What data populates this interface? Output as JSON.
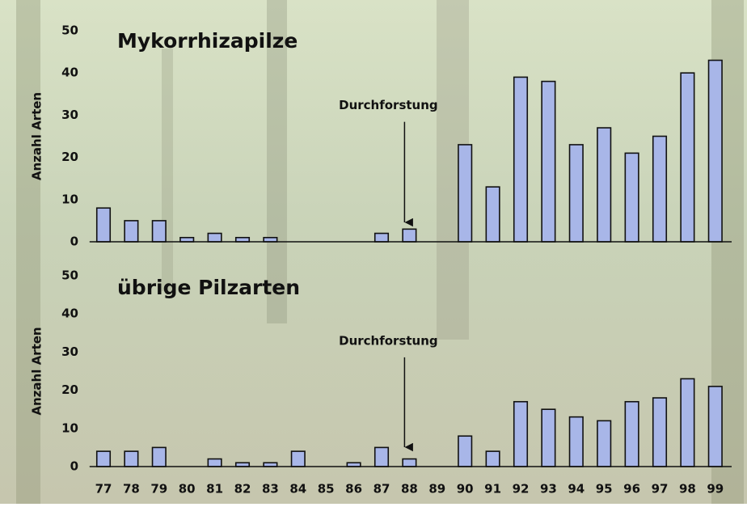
{
  "chart_data": [
    {
      "type": "bar",
      "title": "Mykorrhizapilze",
      "y_label": "Anzahl Arten",
      "annotation": "Durchforstung",
      "annotation_at": 11,
      "values": [
        8,
        5,
        5,
        1,
        2,
        1,
        1,
        0,
        0,
        0,
        2,
        3,
        0,
        23,
        13,
        39,
        38,
        23,
        27,
        21,
        25,
        40,
        43
      ],
      "color": "#a8b6e8",
      "ylim": [
        0,
        50
      ],
      "yticks": [
        0,
        10,
        20,
        30,
        40,
        50
      ]
    },
    {
      "type": "bar",
      "title": "übrige Pilzarten",
      "y_label": "Anzahl Arten",
      "annotation": "Durchforstung",
      "annotation_at": 11,
      "categories": [
        "77",
        "78",
        "79",
        "80",
        "81",
        "82",
        "83",
        "84",
        "85",
        "86",
        "87",
        "88",
        "89",
        "90",
        "91",
        "92",
        "93",
        "94",
        "95",
        "96",
        "97",
        "98",
        "99"
      ],
      "values": [
        4,
        4,
        5,
        0,
        2,
        1,
        1,
        4,
        0,
        1,
        5,
        2,
        0,
        8,
        4,
        17,
        15,
        13,
        12,
        17,
        18,
        23,
        21
      ],
      "color": "#a8b6e8",
      "ylim": [
        0,
        50
      ],
      "yticks": [
        0,
        10,
        20,
        30,
        40,
        50
      ]
    }
  ]
}
